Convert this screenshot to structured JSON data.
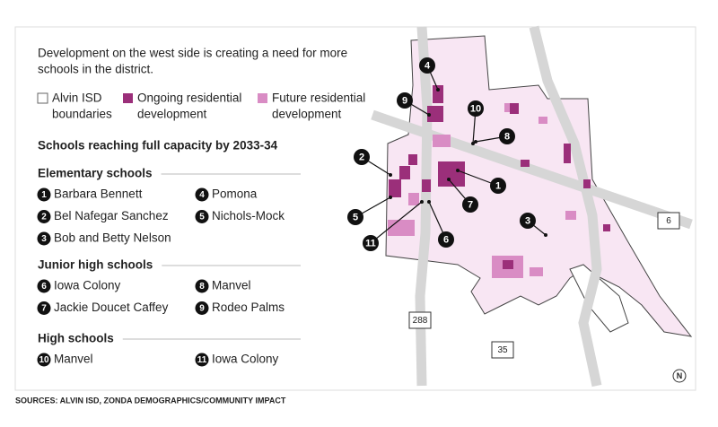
{
  "intro": [
    "Development on the west side is creating a need for more",
    "schools in the district."
  ],
  "legend": [
    {
      "label": [
        "Alvin ISD",
        "boundaries"
      ]
    },
    {
      "label": [
        "Ongoing residential",
        "development"
      ]
    },
    {
      "label": [
        "Future residential",
        "development"
      ]
    }
  ],
  "subtitle": "Schools reaching full capacity by 2033-34",
  "groups": [
    {
      "title": "Elementary schools",
      "schools": [
        {
          "number": "1",
          "name": "Barbara Bennett"
        },
        {
          "number": "4",
          "name": "Pomona"
        },
        {
          "number": "2",
          "name": "Bel Nafegar Sanchez"
        },
        {
          "number": "5",
          "name": "Nichols-Mock"
        },
        {
          "number": "3",
          "name": "Bob and Betty Nelson"
        }
      ]
    },
    {
      "title": "Junior high schools",
      "schools": [
        {
          "number": "6",
          "name": "Iowa Colony"
        },
        {
          "number": "8",
          "name": "Manvel"
        },
        {
          "number": "7",
          "name": "Jackie Doucet Caffey"
        },
        {
          "number": "9",
          "name": "Rodeo Palms"
        }
      ]
    },
    {
      "title": "High schools",
      "schools": [
        {
          "number": "10",
          "name": "Manvel"
        },
        {
          "number": "11",
          "name": "Iowa Colony"
        }
      ]
    }
  ],
  "highways": [
    "288",
    "35",
    "6"
  ],
  "compass": "N",
  "source": "SOURCES: ALVIN ISD, ZONDA DEMOGRAPHICS/COMMUNITY IMPACT"
}
